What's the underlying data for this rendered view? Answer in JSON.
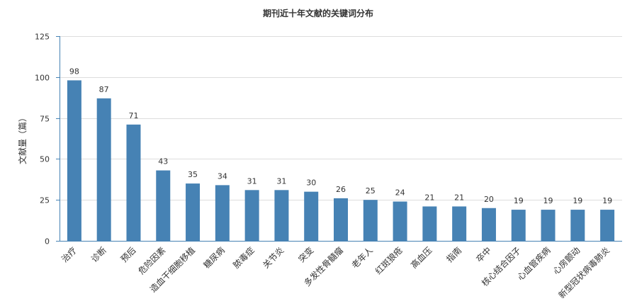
{
  "chart_data": {
    "type": "bar",
    "title": "期刊近十年文献的关键词分布",
    "xlabel": "",
    "ylabel": "文献量（篇）",
    "ylim": [
      0,
      125
    ],
    "yticks": [
      0,
      25,
      50,
      75,
      100,
      125
    ],
    "grid": true,
    "categories": [
      "治疗",
      "诊断",
      "预后",
      "危险因素",
      "造血干细胞移植",
      "糖尿病",
      "脓毒症",
      "关节炎",
      "突变",
      "多发性骨髓瘤",
      "老年人",
      "红斑狼疮",
      "高血压",
      "指南",
      "卒中",
      "核心结合因子",
      "心血管疾病",
      "心房颤动",
      "新型冠状病毒肺炎"
    ],
    "values": [
      98,
      87,
      71,
      43,
      35,
      34,
      31,
      31,
      30,
      26,
      25,
      24,
      21,
      21,
      20,
      19,
      19,
      19,
      19
    ],
    "colors": {
      "bar": "#4682b4",
      "axis": "#4682b4",
      "grid": "#dddddd",
      "text": "#333333"
    }
  }
}
